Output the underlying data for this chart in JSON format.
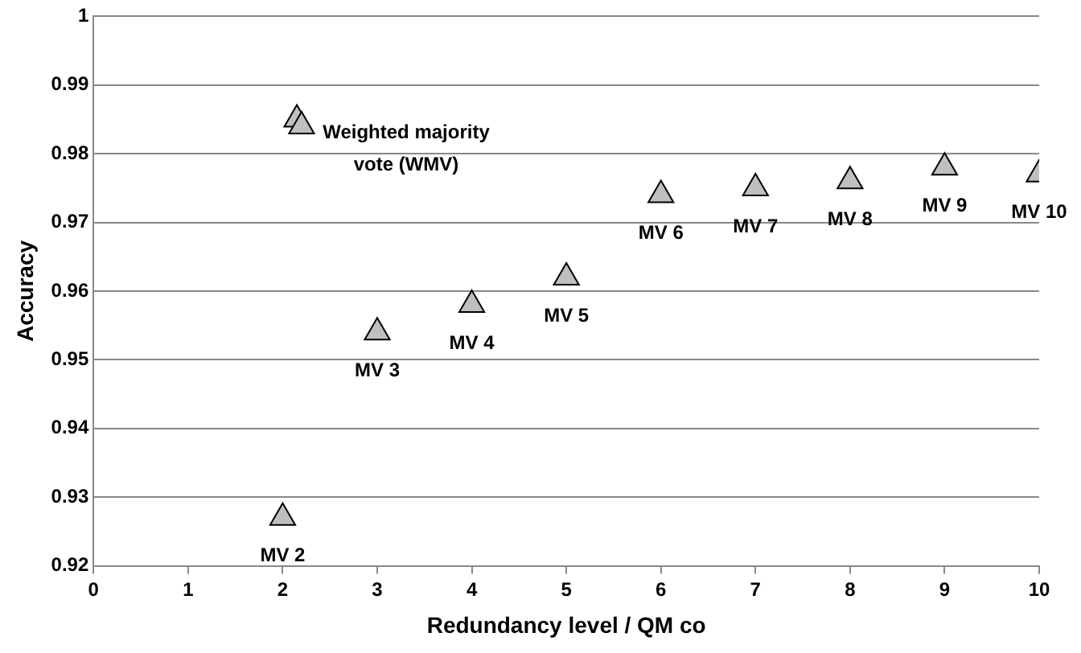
{
  "chart_data": {
    "type": "scatter",
    "xlabel": "Redundancy level / QM co",
    "ylabel": "Accuracy",
    "series": [
      {
        "color": "#bfbfbf",
        "x": [
          2.15,
          2.2,
          2,
          3,
          4,
          5,
          6,
          7,
          8,
          9,
          10
        ],
        "values": [
          0.985,
          0.984,
          0.927,
          0.954,
          0.958,
          0.962,
          0.974,
          0.975,
          0.976,
          0.978,
          0.977
        ]
      }
    ],
    "xlim": [
      0,
      10
    ],
    "xticks": [
      0,
      1,
      2,
      3,
      4,
      5,
      6,
      7,
      8,
      9,
      10
    ],
    "ylim": [
      0.92,
      1
    ],
    "yticks": [
      0.92,
      0.93,
      0.94,
      0.95,
      0.96,
      0.97,
      0.98,
      0.99,
      1
    ],
    "grid": "y",
    "legend": false,
    "marker": "triangle",
    "annotations": [
      {
        "text": "Weighted majority vote (WMV)",
        "x": 2.2,
        "y": 0.984
      },
      {
        "text": "MV 2",
        "x": 2,
        "y": 0.927
      },
      {
        "text": "MV 3",
        "x": 3,
        "y": 0.954
      },
      {
        "text": "MV 4",
        "x": 4,
        "y": 0.958
      },
      {
        "text": "MV 5",
        "x": 5,
        "y": 0.962
      },
      {
        "text": "MV 6",
        "x": 6,
        "y": 0.974
      },
      {
        "text": "MV 7",
        "x": 7,
        "y": 0.975
      },
      {
        "text": "MV 8",
        "x": 8,
        "y": 0.976
      },
      {
        "text": "MV 9",
        "x": 9,
        "y": 0.978
      },
      {
        "text": "MV 10",
        "x": 10,
        "y": 0.977
      }
    ]
  }
}
